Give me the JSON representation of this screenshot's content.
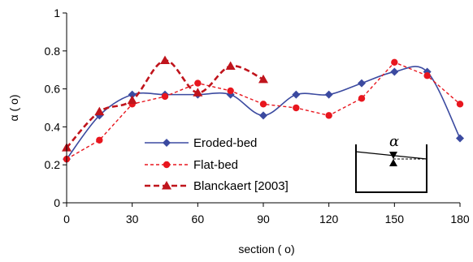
{
  "chart_data": {
    "type": "line",
    "title": "",
    "xlabel": "section ( o)",
    "ylabel": "α ( o)",
    "xlim": [
      0,
      180
    ],
    "ylim": [
      0,
      1
    ],
    "xticks": [
      0,
      30,
      60,
      90,
      120,
      150,
      180
    ],
    "yticks": [
      0,
      0.2,
      0.4,
      0.6,
      0.8,
      1
    ],
    "ytick_labels": [
      "0",
      "0.2",
      "0.4",
      "0.6",
      "0.8",
      "1"
    ],
    "grid": false,
    "legend_position": "lower-center",
    "series": [
      {
        "name": "Eroded-bed",
        "color": "#3b4aa0",
        "line": "solid",
        "marker": "diamond",
        "smooth": true,
        "x": [
          0,
          15,
          30,
          45,
          60,
          75,
          90,
          105,
          120,
          135,
          150,
          165,
          180
        ],
        "y": [
          0.23,
          0.46,
          0.57,
          0.57,
          0.57,
          0.57,
          0.46,
          0.57,
          0.57,
          0.63,
          0.69,
          0.69,
          0.34
        ]
      },
      {
        "name": "Flat-bed",
        "color": "#e8161e",
        "line": "dashed",
        "marker": "circle",
        "smooth": false,
        "x": [
          0,
          15,
          30,
          45,
          60,
          75,
          90,
          105,
          120,
          135,
          150,
          165,
          180
        ],
        "y": [
          0.23,
          0.33,
          0.52,
          0.56,
          0.63,
          0.59,
          0.52,
          0.5,
          0.46,
          0.55,
          0.74,
          0.67,
          0.52
        ]
      },
      {
        "name": "Blanckaert [2003]",
        "color": "#c0141c",
        "line": "dashed-thick",
        "marker": "triangle",
        "smooth": true,
        "x": [
          0,
          15,
          30,
          45,
          60,
          75,
          90
        ],
        "y": [
          0.29,
          0.48,
          0.54,
          0.75,
          0.58,
          0.72,
          0.65
        ]
      }
    ],
    "inset_label": "α"
  }
}
